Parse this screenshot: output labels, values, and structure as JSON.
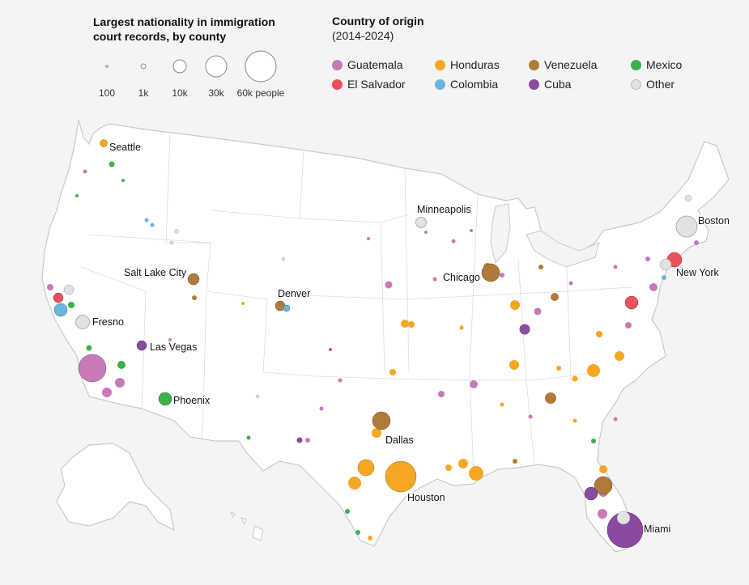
{
  "size_legend": {
    "title": "Largest nationality in immigration court records, by county",
    "items": [
      {
        "label": "100",
        "value": 100
      },
      {
        "label": "1k",
        "value": 1000
      },
      {
        "label": "10k",
        "value": 10000
      },
      {
        "label": "30k",
        "value": 30000
      },
      {
        "label": "60k people",
        "value": 60000
      }
    ]
  },
  "color_legend": {
    "title": "Country of origin",
    "subtitle": "(2014-2024)",
    "items": [
      {
        "label": "Guatemala",
        "color": "#c87ab8"
      },
      {
        "label": "Honduras",
        "color": "#f5a623"
      },
      {
        "label": "Venezuela",
        "color": "#b07a3a"
      },
      {
        "label": "Mexico",
        "color": "#3cb04a"
      },
      {
        "label": "El Salvador",
        "color": "#e8525c"
      },
      {
        "label": "Colombia",
        "color": "#6ab4dd"
      },
      {
        "label": "Cuba",
        "color": "#8a4aa0"
      },
      {
        "label": "Other",
        "color": "#e2e2e2"
      }
    ]
  },
  "cities": [
    {
      "name": "Seattle",
      "country": "Honduras",
      "people": 1200
    },
    {
      "name": "Minneapolis",
      "country": "Other",
      "people": 3000
    },
    {
      "name": "Boston",
      "country": "Other",
      "people": 18000
    },
    {
      "name": "Salt Lake City",
      "country": "Venezuela",
      "people": 3500
    },
    {
      "name": "Chicago",
      "country": "Venezuela",
      "people": 8000
    },
    {
      "name": "New York",
      "country": "El Salvador",
      "people": 12000
    },
    {
      "name": "Denver",
      "country": "Venezuela",
      "people": 3000
    },
    {
      "name": "Fresno",
      "country": "Other",
      "people": 4000
    },
    {
      "name": "Las Vegas",
      "country": "Cuba",
      "people": 2000
    },
    {
      "name": "Phoenix",
      "country": "Mexico",
      "people": 3500
    },
    {
      "name": "Dallas",
      "country": "Venezuela",
      "people": 9000
    },
    {
      "name": "Houston",
      "country": "Honduras",
      "people": 32000
    },
    {
      "name": "Miami",
      "country": "Cuba",
      "people": 45000
    }
  ]
}
